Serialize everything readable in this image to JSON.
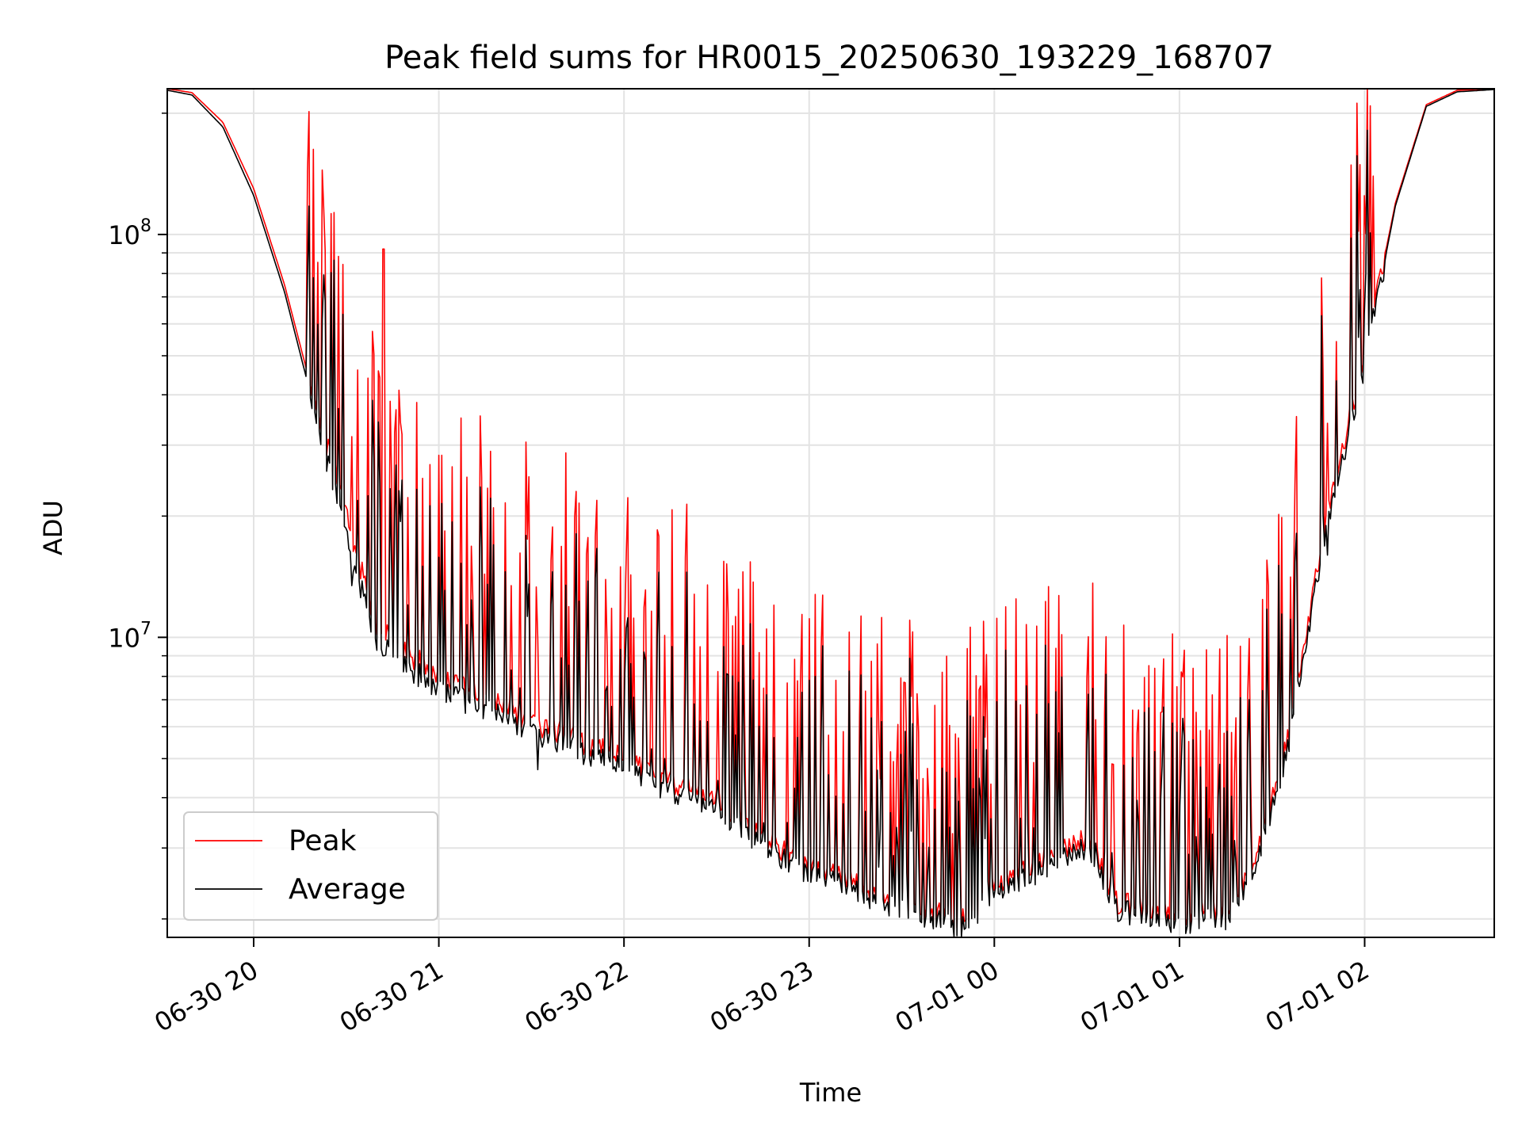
{
  "chart_data": {
    "type": "line",
    "title": "Peak field sums for HR0015_20250630_193229_168707",
    "xlabel": "Time",
    "ylabel": "ADU",
    "y_scale": "log",
    "ylim": [
      1800000,
      230000000
    ],
    "xlim": [
      "2025-06-30 19:32",
      "2025-07-01 02:42"
    ],
    "grid": true,
    "legend_position": "lower-left",
    "x_ticks": [
      "06-30 20",
      "06-30 21",
      "06-30 22",
      "06-30 23",
      "07-01 00",
      "07-01 01",
      "07-01 02"
    ],
    "x_tick_times": [
      "2025-06-30 20:00",
      "2025-06-30 21:00",
      "2025-06-30 22:00",
      "2025-06-30 23:00",
      "2025-07-01 00:00",
      "2025-07-01 01:00",
      "2025-07-01 02:00"
    ],
    "y_ticks": [
      {
        "value": 10000000,
        "base": "10",
        "exp": "7"
      },
      {
        "value": 100000000,
        "base": "10",
        "exp": "8"
      }
    ],
    "baseline": {
      "x": [
        "2025-06-30 19:32",
        "2025-06-30 19:40",
        "2025-06-30 19:50",
        "2025-06-30 20:00",
        "2025-06-30 20:10",
        "2025-06-30 20:20",
        "2025-06-30 20:30",
        "2025-06-30 20:40",
        "2025-06-30 21:00",
        "2025-06-30 21:30",
        "2025-06-30 22:00",
        "2025-06-30 22:30",
        "2025-06-30 22:45",
        "2025-06-30 23:00",
        "2025-06-30 23:30",
        "2025-06-30 23:50",
        "2025-07-01 00:00",
        "2025-07-01 00:30",
        "2025-07-01 00:40",
        "2025-07-01 01:00",
        "2025-07-01 01:15",
        "2025-07-01 01:25",
        "2025-07-01 01:35",
        "2025-07-01 01:40",
        "2025-07-01 01:50",
        "2025-07-01 02:00",
        "2025-07-01 02:10",
        "2025-07-01 02:20",
        "2025-07-01 02:30",
        "2025-07-01 02:42"
      ],
      "peak": [
        230000000,
        225000000,
        190000000,
        130000000,
        75000000,
        38000000,
        20000000,
        10500000,
        8000000,
        6200000,
        5000000,
        3900000,
        3200000,
        2700000,
        2200000,
        2000000,
        2400000,
        3200000,
        2200000,
        2050000,
        2100000,
        2900000,
        5500000,
        9500000,
        24000000,
        50000000,
        120000000,
        210000000,
        228000000,
        230000000
      ],
      "average": [
        228000000,
        222000000,
        185000000,
        125000000,
        72000000,
        36000000,
        18000000,
        9800000,
        7600000,
        6000000,
        4800000,
        3800000,
        3100000,
        2650000,
        2150000,
        1950000,
        2350000,
        3100000,
        2150000,
        2000000,
        2050000,
        2800000,
        5300000,
        9200000,
        23000000,
        48000000,
        118000000,
        208000000,
        226000000,
        229000000
      ]
    },
    "series": [
      {
        "name": "Peak",
        "color": "#ff0000",
        "values": [],
        "spike_seed": 11
      },
      {
        "name": "Average",
        "color": "#000000",
        "values": [],
        "spike_seed": 11
      }
    ],
    "notable_points": [
      {
        "x": "2025-06-30 20:42",
        "peak": 92000000,
        "average": 9000000
      }
    ]
  }
}
